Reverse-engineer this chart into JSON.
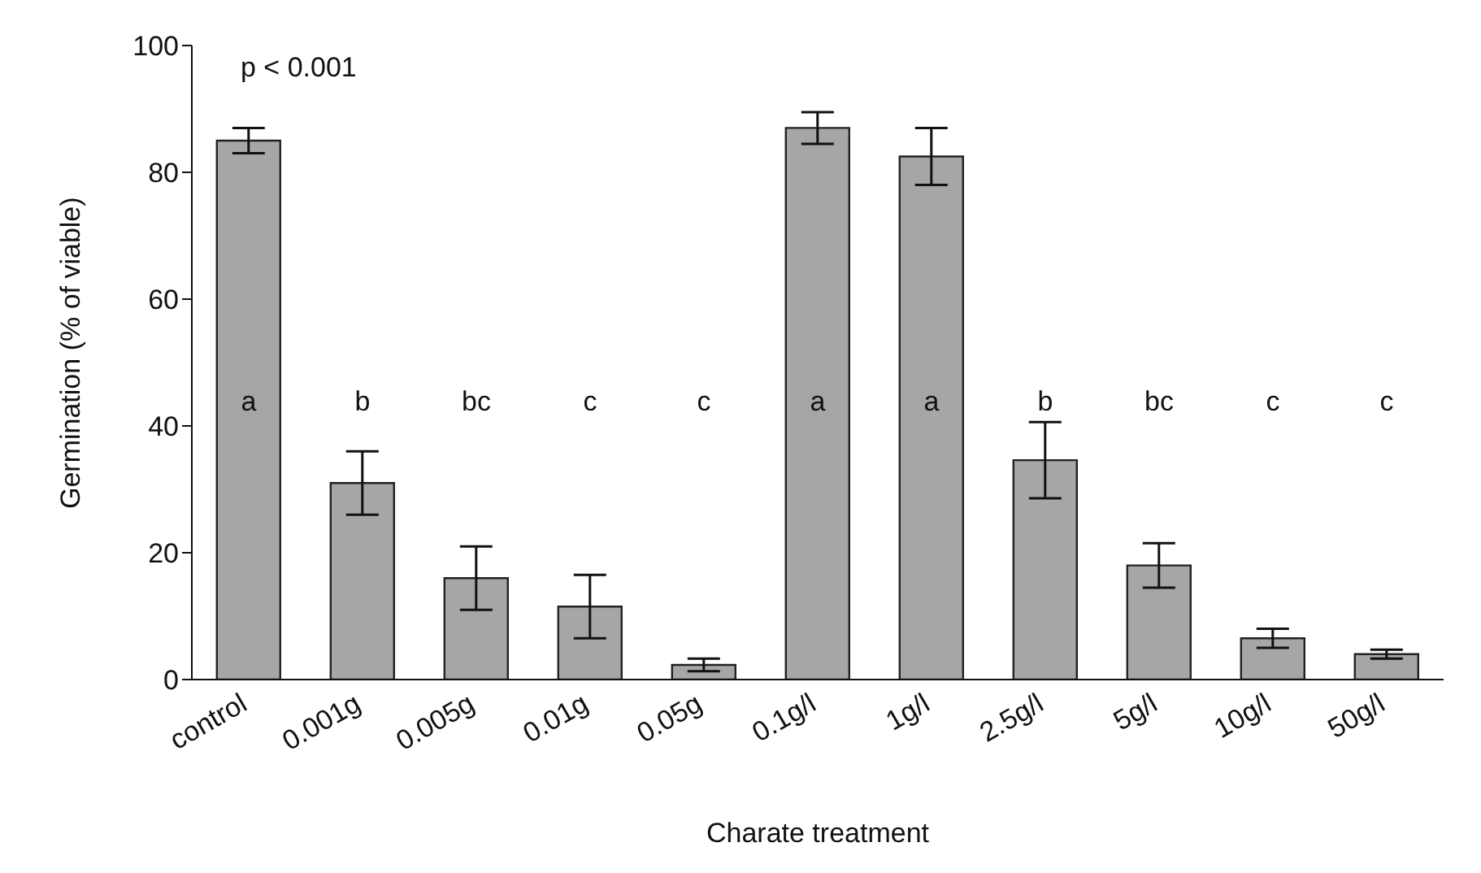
{
  "chart_data": {
    "type": "bar",
    "xlabel": "Charate treatment",
    "ylabel": "Germination (% of viable)",
    "categories": [
      "control",
      "0.001g",
      "0.005g",
      "0.01g",
      "0.05g",
      "0.1g/l",
      "1g/l",
      "2.5g/l",
      "5g/l",
      "10g/l",
      "50g/l"
    ],
    "values": [
      85,
      31,
      16,
      11.5,
      2.3,
      87,
      82.5,
      34.6,
      18,
      6.5,
      4
    ],
    "errors": [
      2,
      5,
      5,
      5,
      1,
      2.5,
      4.5,
      6,
      3.5,
      1.5,
      0.7
    ],
    "color": "#a6a6a6",
    "ylim": [
      0,
      100
    ],
    "yticks": [
      0,
      20,
      40,
      60,
      80,
      100
    ],
    "grid": false,
    "legend": false,
    "annotations": [
      "p < 0.001",
      "a",
      "b",
      "bc",
      "c",
      "c",
      "a",
      "a",
      "b",
      "bc",
      "c",
      "c"
    ]
  }
}
